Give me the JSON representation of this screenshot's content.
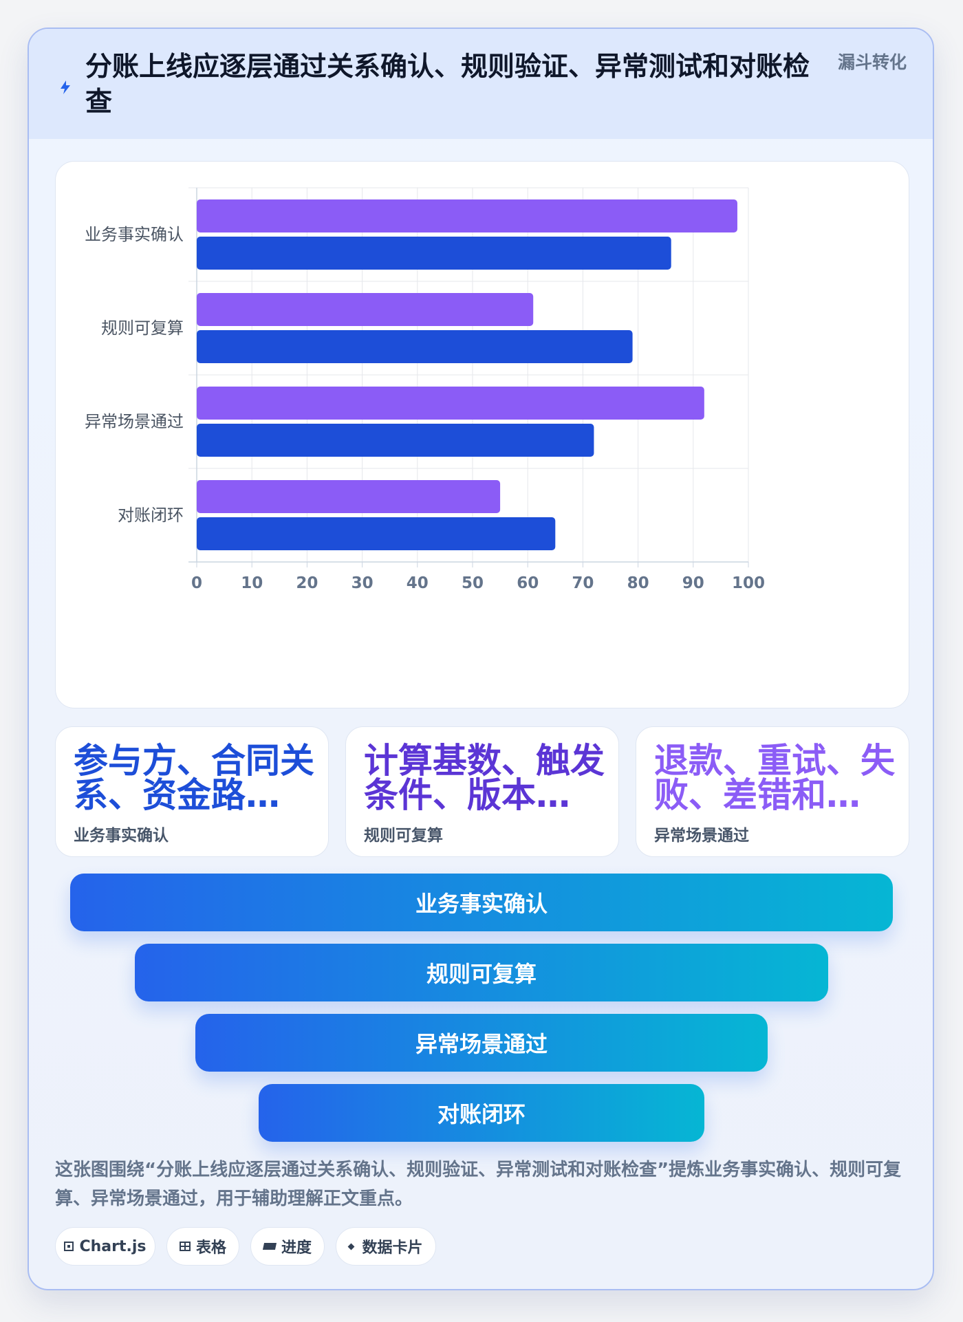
{
  "header": {
    "title": "分账上线应逐层通过关系确认、规则验证、异常测试和对账检查",
    "badge": "漏斗转化",
    "icon": "lightning-icon"
  },
  "chart_data": {
    "type": "bar",
    "orientation": "horizontal",
    "categories": [
      "业务事实确认",
      "规则可复算",
      "异常场景通过",
      "对账闭环"
    ],
    "series": [
      {
        "color": "#8b5cf6",
        "values": [
          98,
          61,
          92,
          55
        ]
      },
      {
        "color": "#1d4ed8",
        "values": [
          86,
          79,
          72,
          65
        ]
      }
    ],
    "xlim": [
      0,
      100
    ],
    "x_ticks": [
      0,
      10,
      20,
      30,
      40,
      50,
      60,
      70,
      80,
      90,
      100
    ],
    "grid": true,
    "legend": "none"
  },
  "stats": [
    {
      "value": "参与方、合同关系、资金路…",
      "label": "业务事实确认",
      "color": "#1d4ed8"
    },
    {
      "value": "计算基数、触发条件、版本…",
      "label": "规则可复算",
      "color": "#5b35d5"
    },
    {
      "value": "退款、重试、失败、差错和…",
      "label": "异常场景通过",
      "color": "#8b5cf6"
    }
  ],
  "funnel": [
    {
      "label": "业务事实确认"
    },
    {
      "label": "规则可复算"
    },
    {
      "label": "异常场景通过"
    },
    {
      "label": "对账闭环"
    }
  ],
  "caption": "这张图围绕“分账上线应逐层通过关系确认、规则验证、异常测试和对账检查”提炼业务事实确认、规则可复算、异常场景通过，用于辅助理解正文重点。",
  "tags": [
    {
      "label": "Chart.js",
      "icon": "chart-icon"
    },
    {
      "label": "表格",
      "icon": "table-icon"
    },
    {
      "label": "进度",
      "icon": "progress-icon"
    },
    {
      "label": "数据卡片",
      "icon": "card-icon"
    }
  ],
  "colors": {
    "accent": "#2563eb",
    "accent_end": "#06b6d4",
    "purple": "#8b5cf6",
    "blue": "#1d4ed8"
  }
}
